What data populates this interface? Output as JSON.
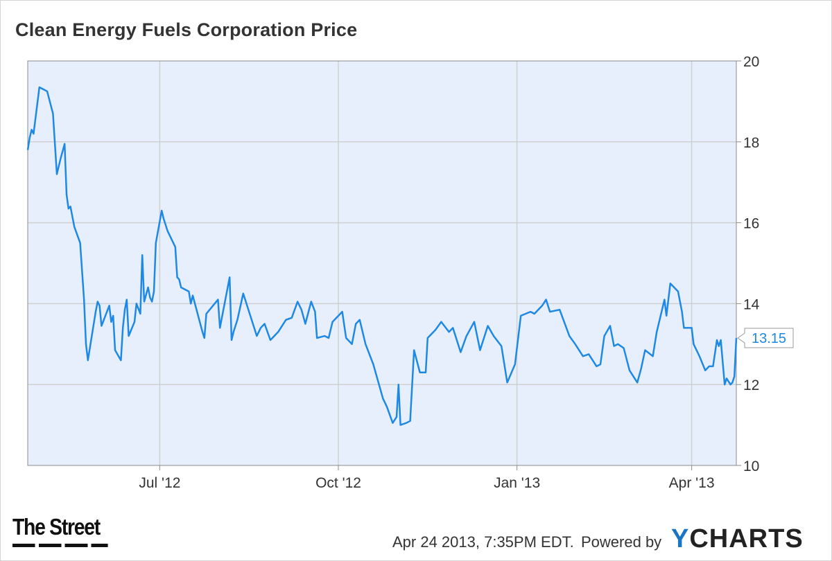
{
  "title": "Clean Energy Fuels Corporation Price",
  "footer": {
    "source_logo": "The Street",
    "timestamp": "Apr 24 2013, 7:35PM EDT.",
    "powered_by": "Powered by",
    "brand_mark": "Y",
    "brand_text": "CHARTS"
  },
  "colors": {
    "line": "#1e88e5",
    "plot_bg": "#e8effc",
    "grid": "#d0d0d0",
    "text": "#333333"
  },
  "chart_data": {
    "type": "line",
    "title": "Clean Energy Fuels Corporation Price",
    "xlabel": "",
    "ylabel": "",
    "ylim": [
      10,
      20
    ],
    "y_ticks": [
      10,
      12,
      14,
      16,
      18,
      20
    ],
    "y_axis_side": "right",
    "grid": true,
    "x_ticks": [
      "Jul '12",
      "Oct '12",
      "Jan '13",
      "Apr '13"
    ],
    "x_tick_dates": [
      "2012-07-01",
      "2012-10-01",
      "2013-01-01",
      "2013-04-01"
    ],
    "x_range": [
      "2012-04-24",
      "2013-04-24"
    ],
    "last_value_label": "13.15",
    "series": [
      {
        "values": [
          [
            "2012-04-24",
            17.8
          ],
          [
            "2012-04-25",
            18.1
          ],
          [
            "2012-04-26",
            18.3
          ],
          [
            "2012-04-27",
            18.2
          ],
          [
            "2012-04-30",
            19.35
          ],
          [
            "2012-05-02",
            19.3
          ],
          [
            "2012-05-04",
            19.25
          ],
          [
            "2012-05-07",
            18.7
          ],
          [
            "2012-05-09",
            17.2
          ],
          [
            "2012-05-11",
            17.6
          ],
          [
            "2012-05-13",
            17.95
          ],
          [
            "2012-05-14",
            16.7
          ],
          [
            "2012-05-15",
            16.35
          ],
          [
            "2012-05-16",
            16.4
          ],
          [
            "2012-05-18",
            15.9
          ],
          [
            "2012-05-21",
            15.5
          ],
          [
            "2012-05-23",
            14.1
          ],
          [
            "2012-05-24",
            13.0
          ],
          [
            "2012-05-25",
            12.6
          ],
          [
            "2012-05-29",
            13.8
          ],
          [
            "2012-05-30",
            14.05
          ],
          [
            "2012-05-31",
            13.95
          ],
          [
            "2012-06-01",
            13.45
          ],
          [
            "2012-06-05",
            13.95
          ],
          [
            "2012-06-06",
            13.55
          ],
          [
            "2012-06-07",
            13.7
          ],
          [
            "2012-06-08",
            12.85
          ],
          [
            "2012-06-11",
            12.6
          ],
          [
            "2012-06-12",
            13.4
          ],
          [
            "2012-06-13",
            13.85
          ],
          [
            "2012-06-14",
            14.1
          ],
          [
            "2012-06-15",
            13.2
          ],
          [
            "2012-06-18",
            13.55
          ],
          [
            "2012-06-19",
            14.0
          ],
          [
            "2012-06-21",
            13.75
          ],
          [
            "2012-06-22",
            15.2
          ],
          [
            "2012-06-23",
            14.05
          ],
          [
            "2012-06-25",
            14.4
          ],
          [
            "2012-06-26",
            14.15
          ],
          [
            "2012-06-27",
            14.05
          ],
          [
            "2012-06-28",
            14.3
          ],
          [
            "2012-06-29",
            15.5
          ],
          [
            "2012-07-02",
            16.3
          ],
          [
            "2012-07-03",
            16.1
          ],
          [
            "2012-07-05",
            15.8
          ],
          [
            "2012-07-09",
            15.4
          ],
          [
            "2012-07-10",
            14.65
          ],
          [
            "2012-07-11",
            14.6
          ],
          [
            "2012-07-12",
            14.4
          ],
          [
            "2012-07-16",
            14.3
          ],
          [
            "2012-07-17",
            14.0
          ],
          [
            "2012-07-18",
            14.2
          ],
          [
            "2012-07-23",
            13.3
          ],
          [
            "2012-07-24",
            13.15
          ],
          [
            "2012-07-25",
            13.75
          ],
          [
            "2012-07-31",
            14.1
          ],
          [
            "2012-08-01",
            13.4
          ],
          [
            "2012-08-06",
            14.65
          ],
          [
            "2012-08-07",
            13.1
          ],
          [
            "2012-08-08",
            13.3
          ],
          [
            "2012-08-10",
            13.6
          ],
          [
            "2012-08-13",
            14.25
          ],
          [
            "2012-08-16",
            13.8
          ],
          [
            "2012-08-20",
            13.2
          ],
          [
            "2012-08-22",
            13.4
          ],
          [
            "2012-08-24",
            13.5
          ],
          [
            "2012-08-27",
            13.1
          ],
          [
            "2012-08-31",
            13.3
          ],
          [
            "2012-09-04",
            13.6
          ],
          [
            "2012-09-07",
            13.65
          ],
          [
            "2012-09-10",
            14.05
          ],
          [
            "2012-09-12",
            13.85
          ],
          [
            "2012-09-14",
            13.5
          ],
          [
            "2012-09-17",
            14.05
          ],
          [
            "2012-09-19",
            13.8
          ],
          [
            "2012-09-20",
            13.15
          ],
          [
            "2012-09-24",
            13.2
          ],
          [
            "2012-09-26",
            13.15
          ],
          [
            "2012-09-28",
            13.55
          ],
          [
            "2012-10-03",
            13.8
          ],
          [
            "2012-10-05",
            13.15
          ],
          [
            "2012-10-08",
            13.0
          ],
          [
            "2012-10-10",
            13.5
          ],
          [
            "2012-10-12",
            13.6
          ],
          [
            "2012-10-15",
            13.0
          ],
          [
            "2012-10-19",
            12.5
          ],
          [
            "2012-10-24",
            11.65
          ],
          [
            "2012-10-26",
            11.45
          ],
          [
            "2012-10-29",
            11.05
          ],
          [
            "2012-10-31",
            11.2
          ],
          [
            "2012-11-01",
            12.0
          ],
          [
            "2012-11-02",
            11.0
          ],
          [
            "2012-11-05",
            11.05
          ],
          [
            "2012-11-07",
            11.1
          ],
          [
            "2012-11-09",
            12.85
          ],
          [
            "2012-11-12",
            12.3
          ],
          [
            "2012-11-15",
            12.3
          ],
          [
            "2012-11-16",
            13.15
          ],
          [
            "2012-11-20",
            13.35
          ],
          [
            "2012-11-23",
            13.55
          ],
          [
            "2012-11-27",
            13.3
          ],
          [
            "2012-11-29",
            13.4
          ],
          [
            "2012-12-03",
            12.8
          ],
          [
            "2012-12-06",
            13.2
          ],
          [
            "2012-12-10",
            13.55
          ],
          [
            "2012-12-13",
            12.85
          ],
          [
            "2012-12-17",
            13.45
          ],
          [
            "2012-12-20",
            13.2
          ],
          [
            "2012-12-24",
            12.95
          ],
          [
            "2012-12-27",
            12.05
          ],
          [
            "2012-12-31",
            12.5
          ],
          [
            "2013-01-03",
            13.7
          ],
          [
            "2013-01-08",
            13.8
          ],
          [
            "2013-01-10",
            13.75
          ],
          [
            "2013-01-14",
            13.95
          ],
          [
            "2013-01-16",
            14.1
          ],
          [
            "2013-01-18",
            13.8
          ],
          [
            "2013-01-23",
            13.85
          ],
          [
            "2013-01-28",
            13.2
          ],
          [
            "2013-01-31",
            13.0
          ],
          [
            "2013-02-04",
            12.7
          ],
          [
            "2013-02-07",
            12.75
          ],
          [
            "2013-02-11",
            12.45
          ],
          [
            "2013-02-13",
            12.5
          ],
          [
            "2013-02-15",
            13.2
          ],
          [
            "2013-02-18",
            13.45
          ],
          [
            "2013-02-20",
            12.95
          ],
          [
            "2013-02-22",
            13.0
          ],
          [
            "2013-02-25",
            12.9
          ],
          [
            "2013-02-28",
            12.35
          ],
          [
            "2013-03-04",
            12.05
          ],
          [
            "2013-03-06",
            12.4
          ],
          [
            "2013-03-08",
            12.85
          ],
          [
            "2013-03-12",
            12.7
          ],
          [
            "2013-03-14",
            13.3
          ],
          [
            "2013-03-18",
            14.1
          ],
          [
            "2013-03-19",
            13.7
          ],
          [
            "2013-03-21",
            14.5
          ],
          [
            "2013-03-25",
            14.3
          ],
          [
            "2013-03-27",
            13.8
          ],
          [
            "2013-03-28",
            13.4
          ],
          [
            "2013-04-01",
            13.4
          ],
          [
            "2013-04-02",
            13.0
          ],
          [
            "2013-04-05",
            12.7
          ],
          [
            "2013-04-08",
            12.35
          ],
          [
            "2013-04-10",
            12.45
          ],
          [
            "2013-04-12",
            12.45
          ],
          [
            "2013-04-14",
            13.1
          ],
          [
            "2013-04-15",
            12.95
          ],
          [
            "2013-04-16",
            13.1
          ],
          [
            "2013-04-17",
            12.55
          ],
          [
            "2013-04-18",
            12.0
          ],
          [
            "2013-04-19",
            12.15
          ],
          [
            "2013-04-21",
            12.0
          ],
          [
            "2013-04-22",
            12.05
          ],
          [
            "2013-04-23",
            12.2
          ],
          [
            "2013-04-24",
            13.15
          ]
        ]
      }
    ]
  }
}
